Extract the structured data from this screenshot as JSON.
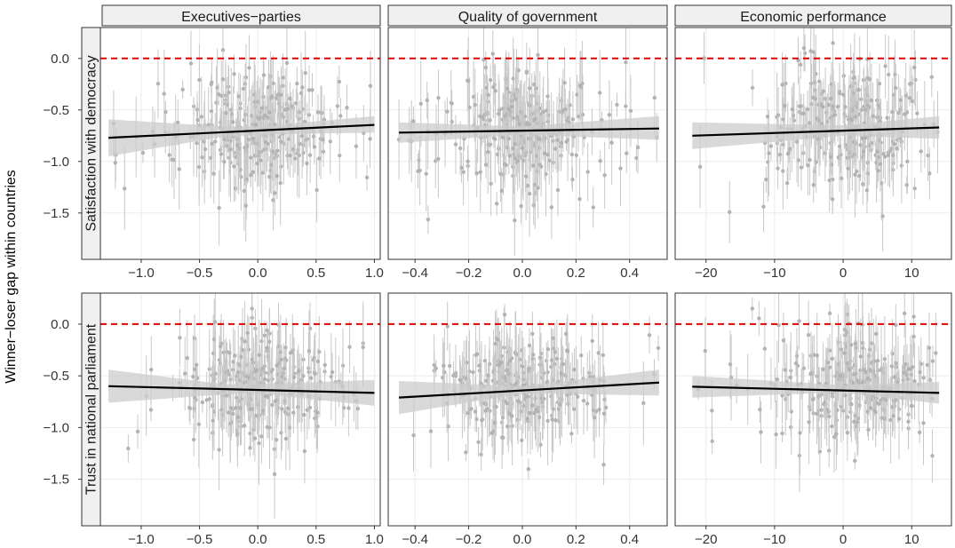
{
  "figure": {
    "ylabel": "Winner−loser gap within countries"
  },
  "chart_data": {
    "type": "scatter",
    "ylabel": "Winner−loser gap within countries",
    "rows": [
      "Satisfaction with democracy",
      "Trust in national parliament"
    ],
    "columns": [
      "Executives−parties",
      "Quality of government",
      "Economic performance"
    ],
    "yticks": [
      "0.0",
      "−0.5",
      "−1.0",
      "−1.5"
    ],
    "ytick_values": [
      0,
      -0.5,
      -1,
      -1.5
    ],
    "ylim": [
      -1.95,
      0.3
    ],
    "reference_line": {
      "y": 0,
      "color": "#e00000",
      "style": "dashed"
    },
    "colors": {
      "points": "#b3b3b3",
      "errorbars": "#c8c8c8",
      "fit": "#000000",
      "ribbon": "#cccccc",
      "strip": "#f0f0f0",
      "grid": "#ebebeb"
    },
    "columns_axes": [
      {
        "xlim": [
          -1.35,
          1.05
        ],
        "xticks": [
          -1.0,
          -0.5,
          0.0,
          0.5,
          1.0
        ],
        "xtick_labels": [
          "−1.0",
          "−0.5",
          "0.0",
          "0.5",
          "1.0"
        ],
        "x_range": [
          -1.28,
          1.0
        ]
      },
      {
        "xlim": [
          -0.5,
          0.54
        ],
        "xticks": [
          -0.4,
          -0.2,
          0.0,
          0.2,
          0.4
        ],
        "xtick_labels": [
          "−0.4",
          "−0.2",
          "0.0",
          "0.2",
          "0.4"
        ],
        "x_range": [
          -0.46,
          0.51
        ]
      },
      {
        "xlim": [
          -24.5,
          15.8
        ],
        "xticks": [
          -20,
          -10,
          0,
          10
        ],
        "xtick_labels": [
          "−20",
          "−10",
          "0",
          "10"
        ],
        "x_range": [
          -22,
          14
        ]
      }
    ],
    "panels": [
      {
        "row": 0,
        "col": 0,
        "fit": {
          "x": [
            -1.28,
            1.0
          ],
          "y": [
            -0.77,
            -0.645
          ]
        },
        "ribbon": {
          "x": [
            -1.28,
            -0.3,
            0.0,
            1.0
          ],
          "lower": [
            -0.95,
            -0.76,
            -0.74,
            -0.72
          ],
          "upper": [
            -0.59,
            -0.66,
            -0.66,
            -0.56
          ]
        },
        "seed": 11,
        "n_points": 280,
        "x_center": 0.0,
        "x_spread": 0.32,
        "y_center": -0.69,
        "y_spread": 0.3
      },
      {
        "row": 0,
        "col": 1,
        "fit": {
          "x": [
            -0.46,
            0.51
          ],
          "y": [
            -0.72,
            -0.68
          ]
        },
        "ribbon": {
          "x": [
            -0.46,
            0.0,
            0.51
          ],
          "lower": [
            -0.82,
            -0.74,
            -0.79
          ],
          "upper": [
            -0.62,
            -0.66,
            -0.56
          ]
        },
        "seed": 23,
        "n_points": 280,
        "x_center": 0.0,
        "x_spread": 0.14,
        "y_center": -0.69,
        "y_spread": 0.3
      },
      {
        "row": 0,
        "col": 2,
        "fit": {
          "x": [
            -22,
            14
          ],
          "y": [
            -0.75,
            -0.67
          ]
        },
        "ribbon": {
          "x": [
            -22,
            0,
            14
          ],
          "lower": [
            -0.88,
            -0.75,
            -0.78
          ],
          "upper": [
            -0.62,
            -0.65,
            -0.56
          ]
        },
        "seed": 37,
        "n_points": 280,
        "x_center": 0.5,
        "x_spread": 5.5,
        "y_center": -0.69,
        "y_spread": 0.3
      },
      {
        "row": 1,
        "col": 0,
        "fit": {
          "x": [
            -1.28,
            1.0
          ],
          "y": [
            -0.6,
            -0.665
          ]
        },
        "ribbon": {
          "x": [
            -1.28,
            -0.3,
            0.0,
            1.0
          ],
          "lower": [
            -0.76,
            -0.68,
            -0.67,
            -0.79
          ],
          "upper": [
            -0.44,
            -0.58,
            -0.58,
            -0.54
          ]
        },
        "seed": 41,
        "n_points": 280,
        "x_center": 0.0,
        "x_spread": 0.32,
        "y_center": -0.6,
        "y_spread": 0.26
      },
      {
        "row": 1,
        "col": 1,
        "fit": {
          "x": [
            -0.46,
            0.51
          ],
          "y": [
            -0.71,
            -0.565
          ]
        },
        "ribbon": {
          "x": [
            -0.46,
            0.0,
            0.51
          ],
          "lower": [
            -0.87,
            -0.67,
            -0.69
          ],
          "upper": [
            -0.55,
            -0.6,
            -0.44
          ]
        },
        "seed": 53,
        "n_points": 280,
        "x_center": 0.0,
        "x_spread": 0.14,
        "y_center": -0.62,
        "y_spread": 0.26
      },
      {
        "row": 1,
        "col": 2,
        "fit": {
          "x": [
            -22,
            14
          ],
          "y": [
            -0.605,
            -0.665
          ]
        },
        "ribbon": {
          "x": [
            -22,
            0,
            14
          ],
          "lower": [
            -0.71,
            -0.66,
            -0.77
          ],
          "upper": [
            -0.5,
            -0.59,
            -0.56
          ]
        },
        "seed": 67,
        "n_points": 280,
        "x_center": 0.5,
        "x_spread": 5.5,
        "y_center": -0.6,
        "y_spread": 0.26
      }
    ]
  }
}
